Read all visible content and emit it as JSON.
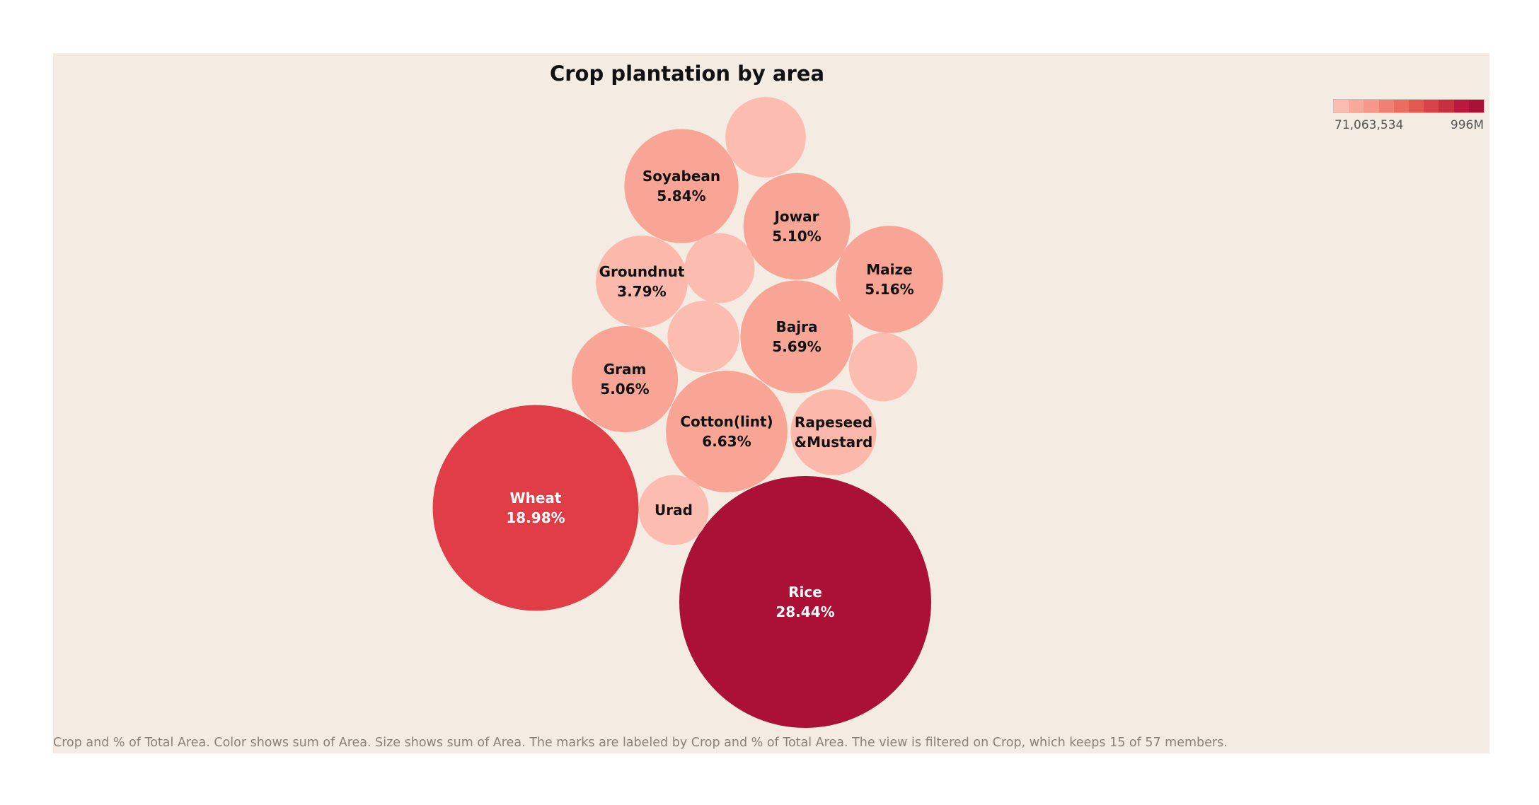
{
  "chart_data": {
    "type": "bubble",
    "title": "Crop plantation by area",
    "legend": {
      "type": "color-ramp",
      "min_label": "71,063,534",
      "max_label": "996M",
      "placement": "top-right",
      "colors": [
        "#fcbcb0",
        "#f9a99a",
        "#f5978a",
        "#ef8073",
        "#eb6c61",
        "#e35851",
        "#d94348",
        "#c9303f",
        "#b8193c",
        "#ab1036"
      ]
    },
    "caption": "Crop and % of Total Area.  Color shows sum of Area.  Size shows sum of Area.  The marks are labeled by Crop and % of Total Area. The view is filtered on Crop, which keeps 15 of 57 members.",
    "bubbles": [
      {
        "crop": "Rice",
        "pct": "28.44%",
        "value": 28.44,
        "color": "#ab1036",
        "text_color": "#ffffff"
      },
      {
        "crop": "Wheat",
        "pct": "18.98%",
        "value": 18.98,
        "color": "#e13d46",
        "text_color": "#ffffff"
      },
      {
        "crop": "Cotton(lint)",
        "pct": "6.63%",
        "value": 6.63,
        "color": "#f9a595",
        "text_color": "#111111"
      },
      {
        "crop": "Soyabean",
        "pct": "5.84%",
        "value": 5.84,
        "color": "#f9a595",
        "text_color": "#111111"
      },
      {
        "crop": "Bajra",
        "pct": "5.69%",
        "value": 5.69,
        "color": "#f9a595",
        "text_color": "#111111"
      },
      {
        "crop": "Maize",
        "pct": "5.16%",
        "value": 5.16,
        "color": "#f9a595",
        "text_color": "#111111"
      },
      {
        "crop": "Jowar",
        "pct": "5.10%",
        "value": 5.1,
        "color": "#f9a595",
        "text_color": "#111111"
      },
      {
        "crop": "Gram",
        "pct": "5.06%",
        "value": 5.06,
        "color": "#f9a595",
        "text_color": "#111111"
      },
      {
        "crop": "Groundnut",
        "pct": "3.79%",
        "value": 3.79,
        "color": "#fcb8aa",
        "text_color": "#111111"
      },
      {
        "crop": "Rapeseed &Mustard",
        "pct": "",
        "value": 3.3,
        "color": "#fcb8aa",
        "text_color": "#111111"
      },
      {
        "crop": "Urad",
        "pct": "",
        "value": 2.2,
        "color": "#fcbcb0",
        "text_color": "#111111"
      },
      {
        "crop": "",
        "pct": "",
        "value": 2.9,
        "color": "#fcbcb0",
        "text_color": "#111111"
      },
      {
        "crop": "",
        "pct": "",
        "value": 2.2,
        "color": "#fcbcb0",
        "text_color": "#111111"
      },
      {
        "crop": "",
        "pct": "",
        "value": 2.3,
        "color": "#fcbcb0",
        "text_color": "#111111"
      },
      {
        "crop": "",
        "pct": "",
        "value": 2.1,
        "color": "#fcbcb0",
        "text_color": "#111111"
      }
    ]
  }
}
